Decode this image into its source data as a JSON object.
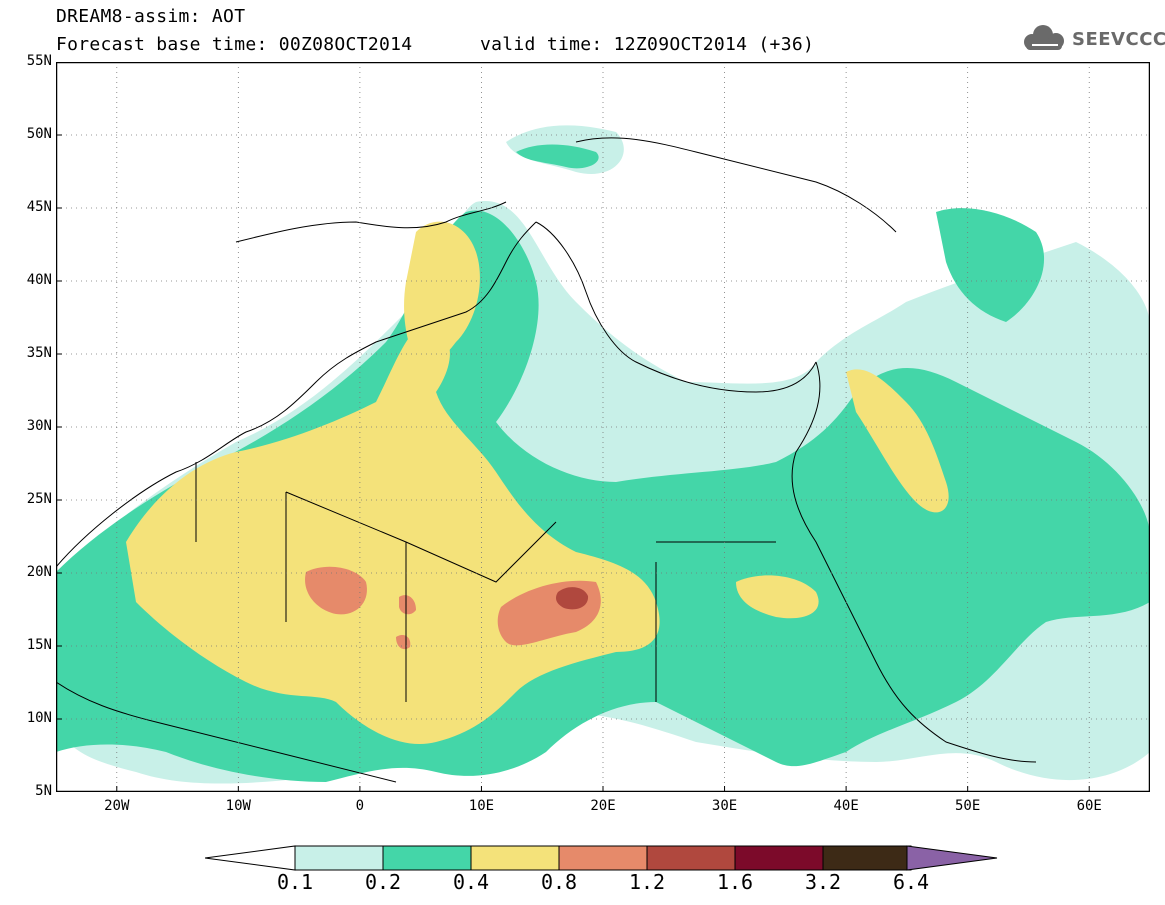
{
  "header": {
    "title": "DREAM8-assim: AOT",
    "base_time": "Forecast base time: 00Z08OCT2014",
    "valid_time": "valid time: 12Z09OCT2014 (+36)"
  },
  "logo": {
    "text": "SEEVCCC",
    "icon": "cloud-icon",
    "color": "#6a6a6a"
  },
  "map": {
    "lon_range": [
      -25,
      65
    ],
    "lat_range": [
      5,
      55
    ],
    "x_ticks": [
      "20W",
      "10W",
      "0",
      "10E",
      "20E",
      "30E",
      "40E",
      "50E",
      "60E"
    ],
    "x_tick_values": [
      -20,
      -10,
      0,
      10,
      20,
      30,
      40,
      50,
      60
    ],
    "y_ticks": [
      "55N",
      "50N",
      "45N",
      "40N",
      "35N",
      "30N",
      "25N",
      "20N",
      "15N",
      "10N",
      "5N"
    ],
    "y_tick_values": [
      55,
      50,
      45,
      40,
      35,
      30,
      25,
      20,
      15,
      10,
      5
    ]
  },
  "colorbar": {
    "levels": [
      "0.1",
      "0.2",
      "0.4",
      "0.8",
      "1.2",
      "1.6",
      "3.2",
      "6.4"
    ],
    "colors": [
      "#c8f0e8",
      "#44d6a8",
      "#f4e27a",
      "#e68a6a",
      "#b0483e",
      "#7c0a2a",
      "#3d2a16"
    ],
    "under_color": "#ffffff",
    "over_color": "#8a62a6"
  }
}
